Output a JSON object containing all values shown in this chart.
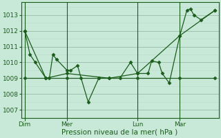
{
  "xlabel": "Pression niveau de la mer( hPa )",
  "bg_color": "#c8e8d8",
  "line_color": "#1a5c1a",
  "grid_major_color": "#99bbaa",
  "grid_minor_color": "#bbddcc",
  "ylim": [
    1006.5,
    1013.8
  ],
  "yticks": [
    1007,
    1008,
    1009,
    1010,
    1011,
    1012,
    1013
  ],
  "day_labels": [
    "Dim",
    "Mer",
    "Lun",
    "Mar"
  ],
  "day_positions": [
    0,
    12,
    32,
    44
  ],
  "xlim": [
    -1,
    55
  ],
  "series1_x": [
    0,
    1.5,
    3,
    6,
    7,
    8,
    9,
    12,
    13,
    15,
    16,
    18,
    21,
    24,
    27,
    30,
    32,
    35,
    36,
    38,
    39,
    41,
    44,
    46,
    47,
    48,
    50,
    54
  ],
  "series1_y": [
    1012.0,
    1010.5,
    1010.0,
    1009.0,
    1009.0,
    1010.5,
    1010.2,
    1009.5,
    1009.5,
    1009.8,
    1009.0,
    1007.5,
    1009.0,
    1009.0,
    1009.0,
    1010.0,
    1009.3,
    1009.3,
    1010.1,
    1010.0,
    1009.3,
    1008.7,
    1011.7,
    1013.3,
    1013.4,
    1013.0,
    1012.7,
    1013.3
  ],
  "series2_x": [
    0,
    6,
    12,
    24,
    32,
    44,
    54
  ],
  "series2_y": [
    1012.0,
    1009.0,
    1009.3,
    1009.0,
    1009.3,
    1011.7,
    1013.3
  ],
  "series3_x": [
    0,
    12,
    21,
    32,
    44,
    54
  ],
  "series3_y": [
    1009.0,
    1009.0,
    1009.0,
    1009.0,
    1009.0,
    1009.0
  ],
  "xlabel_fontsize": 7.5,
  "ytick_fontsize": 6.5,
  "xtick_fontsize": 6.5
}
